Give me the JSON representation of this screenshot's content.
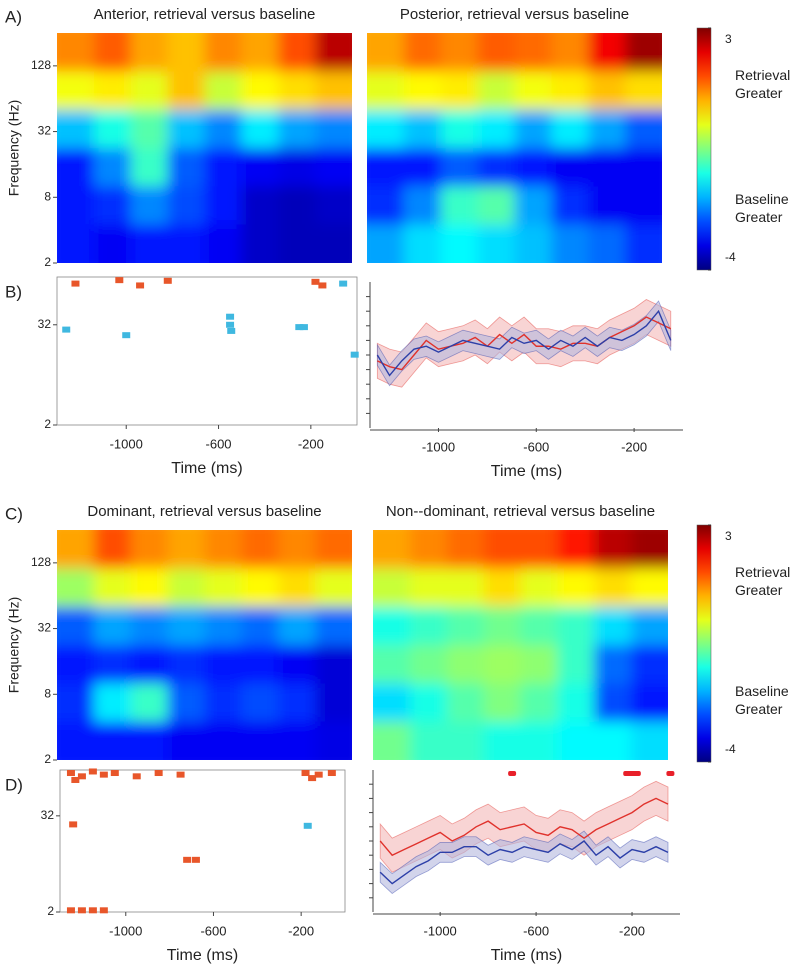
{
  "chart_data": [
    {
      "type": "heatmap",
      "panel_label": "A)",
      "title": "Anterior, retrieval versus baseline",
      "ylabel": "Frequency (Hz)",
      "ylim": [
        2,
        256
      ],
      "yticks": [
        2,
        8,
        32,
        128
      ],
      "log_y": true,
      "z": [
        [
          1.2,
          1.5,
          1.0,
          0.8,
          1.2,
          1.0,
          1.6,
          2.6
        ],
        [
          0.3,
          0.5,
          0.2,
          0.8,
          0.0,
          0.4,
          0.6,
          0.8
        ],
        [
          -1.8,
          -1.2,
          -0.8,
          -1.8,
          -2.2,
          -1.5,
          -2.0,
          -2.2
        ],
        [
          -3.0,
          -2.2,
          -1.0,
          -2.5,
          -3.0,
          -3.2,
          -3.3,
          -3.2
        ],
        [
          -3.0,
          -2.8,
          -2.2,
          -2.6,
          -3.0,
          -3.5,
          -3.6,
          -3.5
        ],
        [
          -3.0,
          -3.2,
          -3.0,
          -3.0,
          -3.2,
          -3.5,
          -3.6,
          -3.6
        ]
      ]
    },
    {
      "type": "heatmap",
      "title": "Posterior, retrieval versus baseline",
      "z": [
        [
          1.0,
          1.4,
          1.2,
          1.5,
          1.4,
          1.2,
          2.2,
          2.8
        ],
        [
          0.2,
          0.4,
          0.5,
          0.0,
          0.3,
          0.5,
          0.8,
          0.6
        ],
        [
          -1.5,
          -1.8,
          -1.2,
          -1.5,
          -2.0,
          -1.5,
          -2.0,
          -2.5
        ],
        [
          -3.0,
          -3.0,
          -2.5,
          -2.8,
          -3.0,
          -3.2,
          -3.2,
          -3.2
        ],
        [
          -2.8,
          -2.2,
          -1.0,
          -0.8,
          -2.0,
          -2.8,
          -3.2,
          -3.2
        ],
        [
          -2.0,
          -1.6,
          -1.4,
          -1.6,
          -1.8,
          -2.2,
          -2.4,
          -2.8
        ]
      ]
    },
    {
      "type": "colorbar",
      "ticks": [
        3,
        -4
      ],
      "label_high": "Retrieval Greater",
      "label_low": "Baseline Greater"
    },
    {
      "type": "significance",
      "panel_label": "B)",
      "xlabel": "Time (ms)",
      "xlim": [
        -1300,
        0
      ],
      "xticks": [
        -1000,
        -600,
        -200
      ],
      "ylim": [
        2,
        120
      ],
      "yticks": [
        2,
        32
      ],
      "log_y": true,
      "series": [
        {
          "color": "#e8562a",
          "x": [
            -1220,
            -1030,
            -940,
            -820,
            -180,
            -150
          ],
          "y": [
            100,
            110,
            95,
            108,
            105,
            95
          ]
        },
        {
          "color": "#3fb8e0",
          "x": [
            -1260,
            -1000,
            -550,
            -550,
            -545,
            -250,
            -230,
            -60,
            -10
          ],
          "y": [
            28,
            24,
            40,
            32,
            27,
            30,
            30,
            100,
            14
          ]
        }
      ]
    },
    {
      "type": "line",
      "xlabel": "Time (ms)",
      "xlim": [
        -1280,
        0
      ],
      "xticks": [
        -1000,
        -600,
        -200
      ],
      "ylim": [
        0,
        10
      ],
      "yticks": [
        1,
        2,
        3,
        4,
        5,
        6,
        7,
        8,
        9
      ],
      "ytick_labels": false,
      "x": [
        -1250,
        -1200,
        -1150,
        -1100,
        -1050,
        -1000,
        -950,
        -900,
        -850,
        -800,
        -750,
        -700,
        -650,
        -600,
        -550,
        -500,
        -450,
        -400,
        -350,
        -300,
        -250,
        -200,
        -150,
        -100,
        -50
      ],
      "series": [
        {
          "color": "#e0322c",
          "band_color": "#f4b8b8",
          "values": [
            4.6,
            4.2,
            4.0,
            5.0,
            6.0,
            5.4,
            5.6,
            5.8,
            6.2,
            5.6,
            6.4,
            5.8,
            6.4,
            5.6,
            5.6,
            5.4,
            5.8,
            5.8,
            5.6,
            6.2,
            6.6,
            7.0,
            7.6,
            7.2,
            6.8
          ],
          "errors": [
            1.2,
            1.2,
            1.2,
            1.2,
            1.2,
            1.2,
            1.2,
            1.2,
            1.2,
            1.2,
            1.2,
            1.2,
            1.2,
            1.2,
            1.2,
            1.2,
            1.2,
            1.2,
            1.2,
            1.2,
            1.2,
            1.2,
            1.2,
            1.2,
            1.2
          ]
        },
        {
          "color": "#2c3fa8",
          "band_color": "#b4b8de",
          "values": [
            5.0,
            3.6,
            4.6,
            5.4,
            5.6,
            5.2,
            5.6,
            6.0,
            5.8,
            5.6,
            5.4,
            6.2,
            5.8,
            6.0,
            5.4,
            6.0,
            5.6,
            6.2,
            5.6,
            6.2,
            6.0,
            6.4,
            7.0,
            8.0,
            6.0
          ],
          "errors": [
            0.7,
            0.7,
            0.7,
            0.7,
            0.7,
            0.7,
            0.7,
            0.7,
            0.7,
            0.7,
            0.7,
            0.7,
            0.7,
            0.7,
            0.7,
            0.7,
            0.7,
            0.7,
            0.7,
            0.7,
            0.7,
            0.7,
            0.7,
            0.7,
            0.7
          ]
        }
      ]
    },
    {
      "type": "heatmap",
      "panel_label": "C)",
      "title": "Dominant, retrieval versus baseline",
      "ylabel": "Frequency (Hz)",
      "ylim": [
        2,
        256
      ],
      "yticks": [
        2,
        8,
        32,
        128
      ],
      "log_y": true,
      "z": [
        [
          1.0,
          1.6,
          1.2,
          1.0,
          1.2,
          1.4,
          1.2,
          1.4
        ],
        [
          -0.3,
          0.2,
          0.4,
          0.0,
          0.2,
          0.4,
          0.6,
          0.2
        ],
        [
          -2.5,
          -2.0,
          -2.2,
          -2.0,
          -2.2,
          -2.4,
          -2.0,
          -2.4
        ],
        [
          -3.0,
          -2.8,
          -3.0,
          -2.8,
          -3.0,
          -3.0,
          -3.2,
          -3.4
        ],
        [
          -2.8,
          -1.5,
          -1.0,
          -2.5,
          -2.8,
          -2.6,
          -2.8,
          -3.4
        ],
        [
          -3.0,
          -3.0,
          -3.0,
          -3.2,
          -3.2,
          -3.2,
          -3.2,
          -3.3
        ]
      ]
    },
    {
      "type": "heatmap",
      "title": "Non--dominant, retrieval versus baseline",
      "z": [
        [
          1.0,
          1.2,
          1.4,
          1.6,
          1.6,
          2.0,
          2.6,
          2.8
        ],
        [
          0.0,
          0.2,
          0.2,
          0.6,
          0.2,
          0.4,
          0.6,
          0.4
        ],
        [
          -1.2,
          -1.0,
          -0.8,
          -0.6,
          -0.8,
          -1.0,
          -1.6,
          -2.0
        ],
        [
          -0.8,
          -0.6,
          -0.4,
          -0.3,
          -0.4,
          -1.0,
          -2.4,
          -2.8
        ],
        [
          -1.6,
          -1.2,
          -0.8,
          -0.5,
          -0.8,
          -1.2,
          -2.6,
          -3.0
        ],
        [
          -0.6,
          -1.0,
          -1.0,
          -1.2,
          -1.2,
          -1.4,
          -1.4,
          -1.6
        ]
      ]
    },
    {
      "type": "colorbar",
      "ticks": [
        3,
        -4
      ],
      "label_high": "Retrieval Greater",
      "label_low": "Baseline Greater"
    },
    {
      "type": "significance",
      "panel_label": "D)",
      "xlabel": "Time (ms)",
      "xlim": [
        -1300,
        0
      ],
      "xticks": [
        -1000,
        -600,
        -200
      ],
      "ylim": [
        2,
        120
      ],
      "yticks": [
        2,
        32
      ],
      "log_y": true,
      "series": [
        {
          "color": "#e8562a",
          "x": [
            -1250,
            -1230,
            -1200,
            -1150,
            -1100,
            -1050,
            -950,
            -850,
            -750,
            -180,
            -150,
            -120,
            -60,
            -1240,
            -720,
            -680,
            -1250,
            -1200,
            -1150,
            -1100
          ],
          "y": [
            110,
            90,
            100,
            115,
            105,
            110,
            100,
            110,
            105,
            110,
            95,
            105,
            110,
            25,
            9,
            9,
            2.1,
            2.1,
            2.1,
            2.1
          ]
        },
        {
          "color": "#3fb8e0",
          "x": [
            -170
          ],
          "y": [
            24
          ]
        }
      ]
    },
    {
      "type": "line",
      "xlabel": "Time (ms)",
      "xlim": [
        -1280,
        0
      ],
      "xticks": [
        -1000,
        -600,
        -200
      ],
      "ylim": [
        0,
        10
      ],
      "yticks": [
        1,
        2,
        3,
        4,
        5,
        6,
        7,
        8,
        9
      ],
      "ytick_labels": false,
      "x": [
        -1250,
        -1200,
        -1150,
        -1100,
        -1050,
        -1000,
        -950,
        -900,
        -850,
        -800,
        -750,
        -700,
        -650,
        -600,
        -550,
        -500,
        -450,
        -400,
        -350,
        -300,
        -250,
        -200,
        -150,
        -100,
        -50
      ],
      "sig_x": [
        -700,
        -220,
        -200,
        -180,
        -40
      ],
      "sig_color": "#e8202a",
      "series": [
        {
          "color": "#e0322c",
          "band_color": "#f4b8b8",
          "values": [
            5.0,
            4.0,
            4.4,
            4.8,
            5.2,
            5.6,
            5.0,
            5.4,
            6.0,
            6.4,
            5.8,
            6.0,
            6.2,
            5.6,
            5.4,
            6.0,
            5.8,
            5.2,
            5.8,
            6.2,
            6.6,
            7.0,
            7.6,
            8.0,
            7.6
          ],
          "errors": [
            1.2,
            1.2,
            1.2,
            1.2,
            1.2,
            1.2,
            1.2,
            1.2,
            1.2,
            1.2,
            1.2,
            1.2,
            1.2,
            1.2,
            1.2,
            1.2,
            1.2,
            1.2,
            1.2,
            1.2,
            1.2,
            1.2,
            1.2,
            1.2,
            1.2
          ]
        },
        {
          "color": "#2c3fa8",
          "band_color": "#b4b8de",
          "values": [
            2.8,
            2.0,
            2.6,
            3.2,
            3.6,
            4.2,
            4.2,
            4.6,
            4.6,
            4.0,
            4.4,
            4.2,
            4.6,
            4.4,
            4.2,
            4.8,
            4.4,
            5.0,
            4.0,
            4.6,
            3.8,
            4.4,
            4.2,
            4.6,
            4.2
          ],
          "errors": [
            0.7,
            0.7,
            0.7,
            0.7,
            0.7,
            0.7,
            0.7,
            0.7,
            0.7,
            0.7,
            0.7,
            0.7,
            0.7,
            0.7,
            0.7,
            0.7,
            0.7,
            0.7,
            0.7,
            0.7,
            0.7,
            0.7,
            0.7,
            0.7,
            0.7
          ]
        }
      ]
    }
  ]
}
